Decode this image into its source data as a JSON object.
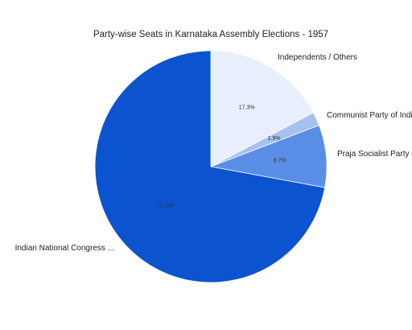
{
  "chart_data": {
    "type": "pie",
    "title": "Party-wise Seats in Karnataka Assembly Elections - 1957",
    "slices": [
      {
        "label": "Independents / Others",
        "value": 17.3,
        "percent_label": "17.3%",
        "color": "#e8eefb"
      },
      {
        "label": "Communist Party of India ...",
        "value": 1.9,
        "percent_label": "1.9%",
        "color": "#a6c1f0"
      },
      {
        "label": "Praja Socialist Party (PS...",
        "value": 8.7,
        "percent_label": "8.7%",
        "color": "#5a8de6"
      },
      {
        "label": "Indian National Congress ...",
        "value": 72.1,
        "percent_label": "72.1%",
        "color": "#0b53cf"
      }
    ],
    "start_angle_deg": 0,
    "direction": "clockwise",
    "legend": "none"
  }
}
